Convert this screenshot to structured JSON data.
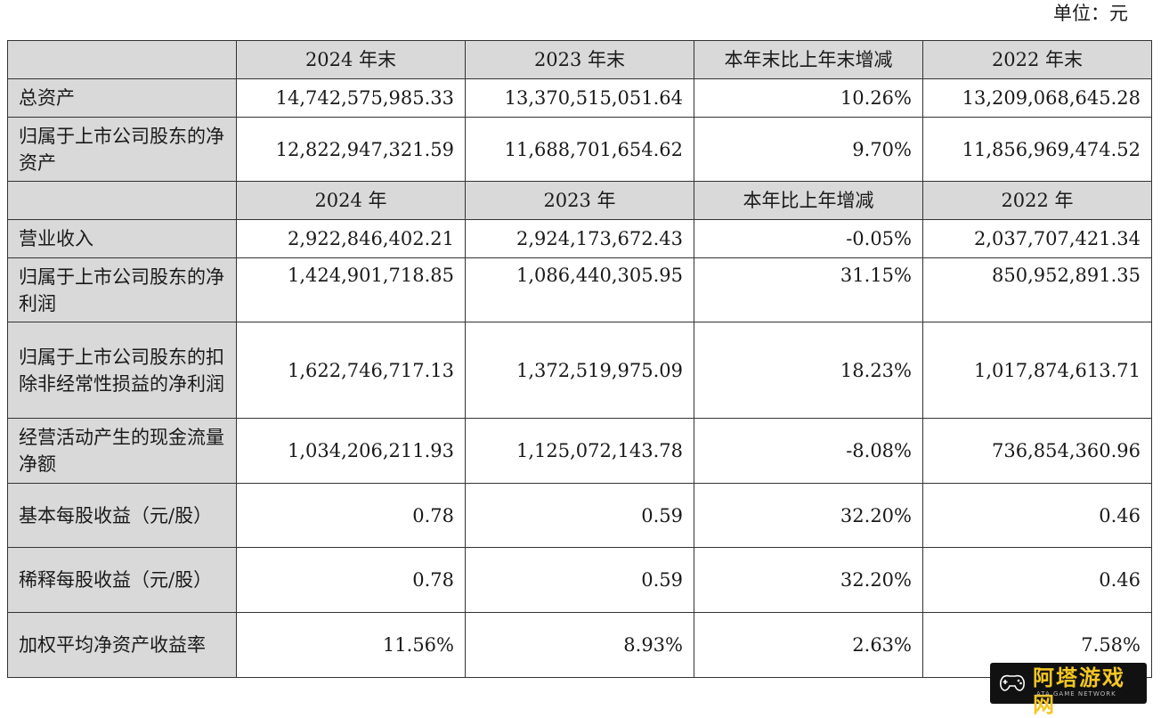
{
  "unit_label": "单位：元",
  "section1": {
    "headers": [
      "2024 年末",
      "2023 年末",
      "本年末比上年末增减",
      "2022 年末"
    ],
    "rows": [
      {
        "label": "总资产",
        "values": [
          "14,742,575,985.33",
          "13,370,515,051.64",
          "10.26%",
          "13,209,068,645.28"
        ]
      },
      {
        "label": "归属于上市公司股东的净资产",
        "values": [
          "12,822,947,321.59",
          "11,688,701,654.62",
          "9.70%",
          "11,856,969,474.52"
        ]
      }
    ]
  },
  "section2": {
    "headers": [
      "2024 年",
      "2023 年",
      "本年比上年增减",
      "2022 年"
    ],
    "rows": [
      {
        "label": "营业收入",
        "values": [
          "2,922,846,402.21",
          "2,924,173,672.43",
          "-0.05%",
          "2,037,707,421.34"
        ]
      },
      {
        "label": "归属于上市公司股东的净利润",
        "values": [
          "1,424,901,718.85",
          "1,086,440,305.95",
          "31.15%",
          "850,952,891.35"
        ]
      },
      {
        "label": "归属于上市公司股东的扣除非经常性损益的净利润",
        "values": [
          "1,622,746,717.13",
          "1,372,519,975.09",
          "18.23%",
          "1,017,874,613.71"
        ]
      },
      {
        "label": "经营活动产生的现金流量净额",
        "values": [
          "1,034,206,211.93",
          "1,125,072,143.78",
          "-8.08%",
          "736,854,360.96"
        ]
      },
      {
        "label": "基本每股收益（元/股）",
        "values": [
          "0.78",
          "0.59",
          "32.20%",
          "0.46"
        ]
      },
      {
        "label": "稀释每股收益（元/股）",
        "values": [
          "0.78",
          "0.59",
          "32.20%",
          "0.46"
        ]
      },
      {
        "label": "加权平均净资产收益率",
        "values": [
          "11.56%",
          "8.93%",
          "2.63%",
          "7.58%"
        ]
      }
    ]
  },
  "watermark": {
    "text": "阿塔游戏网",
    "subtext": "ATA GAME NETWORK"
  }
}
